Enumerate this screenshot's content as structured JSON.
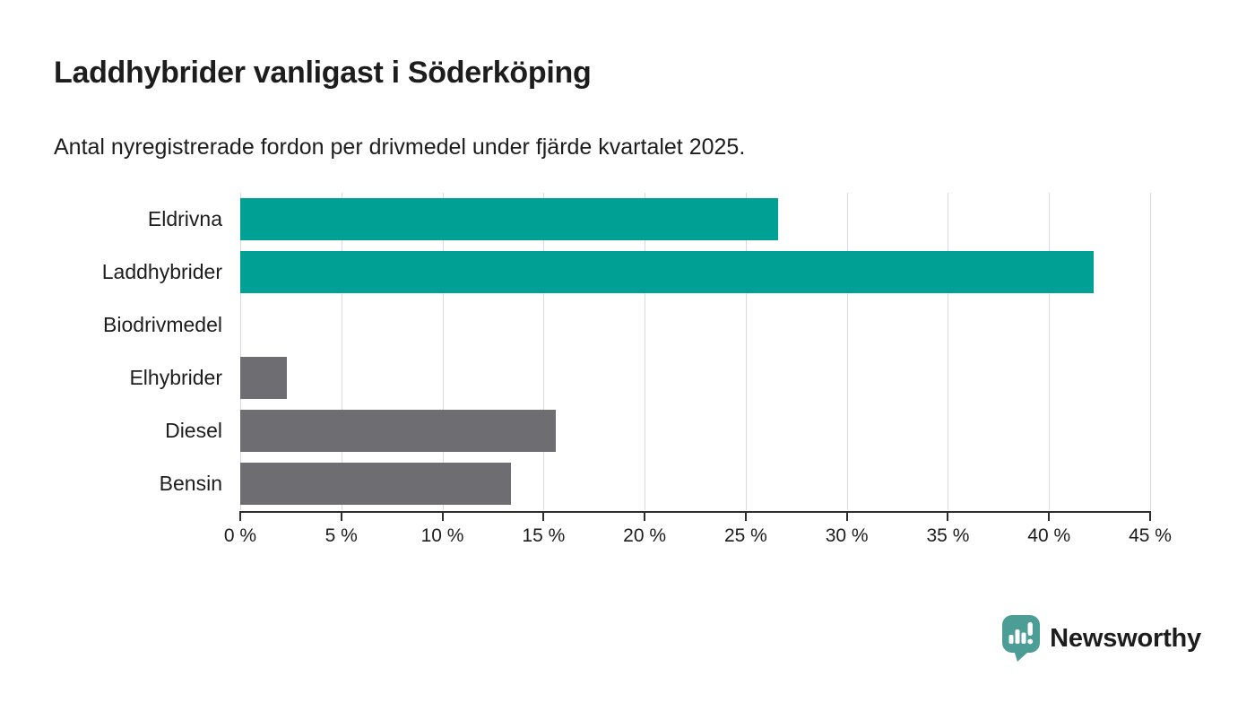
{
  "header": {
    "title": "Laddhybrider vanligast i Söderköping",
    "subtitle": "Antal nyregistrerade fordon per drivmedel under fjärde kvartalet 2025."
  },
  "chart_data": {
    "type": "bar",
    "orientation": "horizontal",
    "title": "Laddhybrider vanligast i Söderköping",
    "subtitle": "Antal nyregistrerade fordon per drivmedel under fjärde kvartalet 2025.",
    "categories": [
      "Eldrivna",
      "Laddhybrider",
      "Biodrivmedel",
      "Elhybrider",
      "Diesel",
      "Bensin"
    ],
    "values": [
      26.6,
      42.2,
      0,
      2.3,
      15.6,
      13.4
    ],
    "bar_colors": [
      "#00a095",
      "#00a095",
      "#6d6d72",
      "#6d6d72",
      "#6d6d72",
      "#6d6d72"
    ],
    "unit": "%",
    "xlabel": "",
    "ylabel": "",
    "xlim": [
      0,
      45
    ],
    "x_ticks": [
      0,
      5,
      10,
      15,
      20,
      25,
      30,
      35,
      40,
      45
    ],
    "x_tick_suffix": " %",
    "grid": true,
    "legend": "none"
  },
  "branding": {
    "logo_text": "Newsworthy",
    "logo_text_color": "#3d918b",
    "logo_mark_color": "#4d9d97",
    "logo_mark_icon": "speech-bubble-bar-chart-icon"
  },
  "colors": {
    "accent_teal": "#00a095",
    "neutral_gray": "#6d6d72",
    "axis": "#2e2e2e",
    "gridline": "#d9d9d9",
    "text": "#1d1d1d",
    "background": "#ffffff"
  }
}
